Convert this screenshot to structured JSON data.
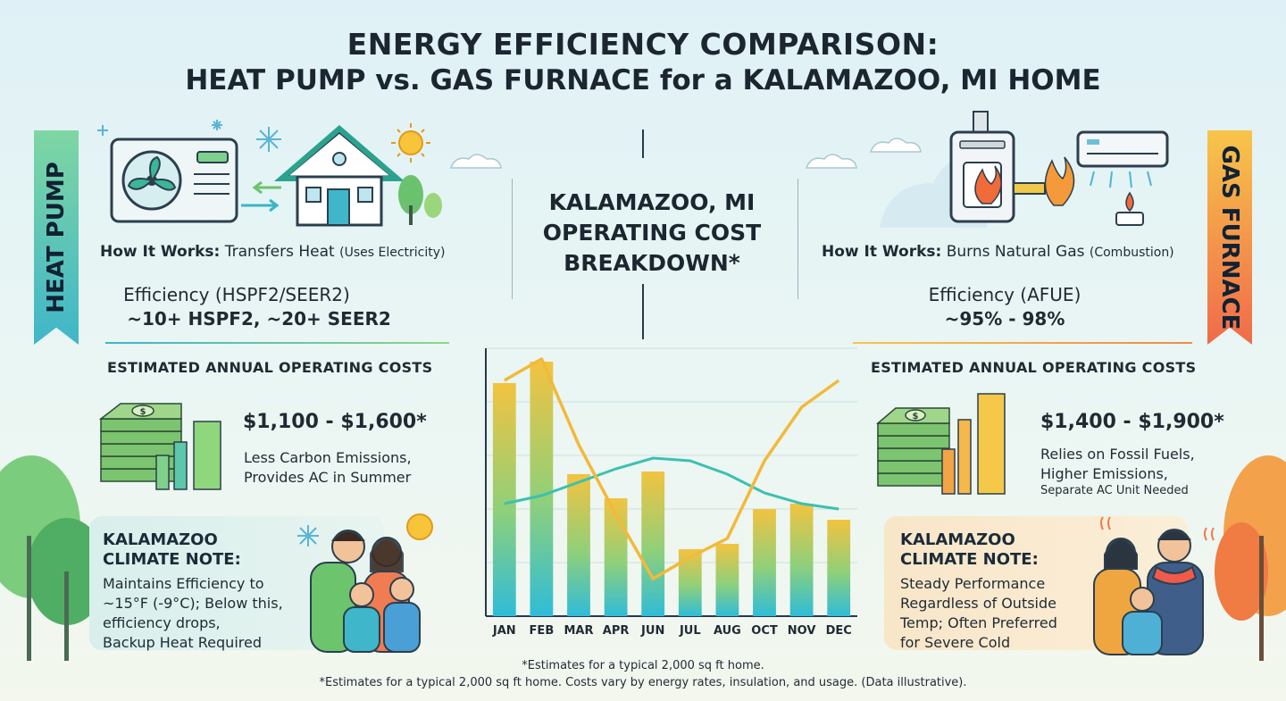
{
  "header": {
    "title_line1": "ENERGY EFFICIENCY COMPARISON:",
    "title_line2": "HEAT PUMP vs. GAS FURNACE for a KALAMAZOO, MI HOME"
  },
  "heat_pump": {
    "ribbon": "HEAT PUMP",
    "how_label": "How It Works:",
    "how_text": "Transfers Heat",
    "how_paren": "(Uses Electricity)",
    "efficiency_label": "Efficiency (HSPF2/SEER2)",
    "efficiency_value": "~10+ HSPF2, ~20+ SEER2",
    "costs_heading": "ESTIMATED ANNUAL OPERATING COSTS",
    "cost_range": "$1,100 - $1,600*",
    "cost_note_1": "Less Carbon Emissions,",
    "cost_note_2": "Provides AC in Summer",
    "climate_title_1": "KALAMAZOO",
    "climate_title_2": "CLIMATE NOTE:",
    "climate_lines": [
      "Maintains Efficiency to",
      "~15°F (-9°C); Below this,",
      "efficiency drops,",
      "Backup Heat Required"
    ]
  },
  "gas_furnace": {
    "ribbon": "GAS FURNACE",
    "how_label": "How It Works:",
    "how_text": "Burns Natural Gas",
    "how_paren": "(Combustion)",
    "efficiency_label": "Efficiency (AFUE)",
    "efficiency_value": "~95% - 98%",
    "costs_heading": "ESTIMATED ANNUAL OPERATING COSTS",
    "cost_range": "$1,400 - $1,900*",
    "cost_note_1": "Relies on Fossil Fuels,",
    "cost_note_2": "Higher Emissions,",
    "cost_note_3": "Separate AC Unit Needed",
    "climate_title_1": "KALAMAZOO",
    "climate_title_2": "CLIMATE NOTE:",
    "climate_lines": [
      "Steady Performance",
      "Regardless of Outside",
      "Temp; Often Preferred",
      "for Severe Cold"
    ]
  },
  "center": {
    "title_lines": [
      "KALAMAZOO, MI",
      "OPERATING COST",
      "BREAKDOWN*"
    ]
  },
  "chart_data": {
    "type": "bar",
    "categories": [
      "JAN",
      "FEB",
      "MAR",
      "APR",
      "JUN",
      "JUL",
      "AUG",
      "OCT",
      "NOV",
      "DEC"
    ],
    "values": [
      0.87,
      0.95,
      0.53,
      0.44,
      0.54,
      0.25,
      0.27,
      0.4,
      0.42,
      0.36
    ],
    "series": [
      {
        "values": [
          0.42,
          0.45,
          0.5,
          0.55,
          0.59,
          0.58,
          0.53,
          0.46,
          0.42,
          0.4
        ]
      },
      {
        "values": [
          0.88,
          0.96,
          0.64,
          0.38,
          0.14,
          0.22,
          0.29,
          0.58,
          0.78,
          0.88
        ]
      }
    ],
    "ylim": [
      0,
      1
    ],
    "grid": true,
    "colors": {
      "bar_top": "#f2c340",
      "bar_bottom": "#2fbcd8",
      "line_heat_pump": "#3cc0b0",
      "line_gas": "#f2b93a"
    }
  },
  "footer": {
    "note_1": "*Estimates for a typical 2,000 sq ft home.",
    "note_2": "*Estimates for a typical 2,000 sq ft home. Costs vary by energy rates, insulation, and usage. (Data illustrative)."
  },
  "icons": [
    "heat-pump-unit-icon",
    "house-icon",
    "snowflake-icon",
    "sun-icon",
    "cloud-icon",
    "tree-icon",
    "money-stack-icon",
    "bar-chart-icon",
    "family-icon",
    "gas-furnace-icon",
    "flame-icon",
    "air-conditioner-icon"
  ]
}
